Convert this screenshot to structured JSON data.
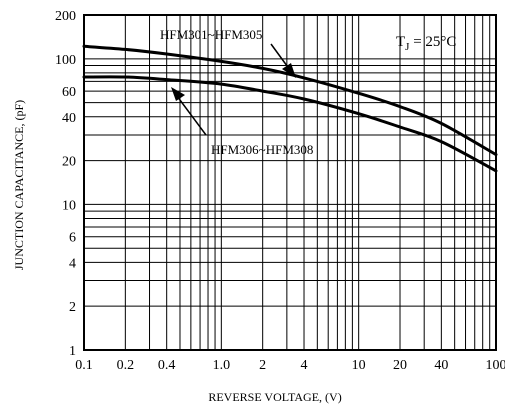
{
  "chart_data": {
    "type": "line",
    "title": "",
    "xlabel": "REVERSE VOLTAGE, (V)",
    "ylabel": "JUNCTION CAPACITANCE, (pF)",
    "x_scale": "log",
    "y_scale": "log",
    "xlim": [
      0.1,
      100
    ],
    "ylim": [
      1,
      200
    ],
    "grid": true,
    "x_ticks": [
      0.1,
      0.2,
      0.4,
      1,
      2,
      4,
      10,
      20,
      40,
      100
    ],
    "x_tick_labels": [
      "0.1",
      "0.2",
      "0.4",
      "1.0",
      "2",
      "4",
      "10",
      "20",
      "40",
      "100"
    ],
    "y_ticks": [
      1,
      2,
      4,
      6,
      10,
      20,
      40,
      60,
      100,
      200
    ],
    "y_tick_labels": [
      "1",
      "2",
      "4",
      "6",
      "10",
      "20",
      "40",
      "60",
      "100",
      "200"
    ],
    "annotation": "T_J = 25°C",
    "series": [
      {
        "name": "HFM301~HFM305",
        "x": [
          0.1,
          0.2,
          0.4,
          1,
          2,
          4,
          10,
          20,
          40,
          100
        ],
        "y": [
          122,
          116,
          108,
          96,
          86,
          74,
          58,
          47,
          36,
          22
        ]
      },
      {
        "name": "HFM306~HFM308",
        "x": [
          0.1,
          0.2,
          0.4,
          1,
          2,
          4,
          10,
          20,
          40,
          100
        ],
        "y": [
          75,
          75,
          72,
          67,
          60,
          53,
          42,
          34,
          27,
          17
        ]
      }
    ]
  },
  "labels": {
    "series1_label": "HFM301~HFM305",
    "series2_label": "HFM306~HFM308",
    "tj_main": "T",
    "tj_sub": "J",
    "tj_rest": " = 25°C"
  }
}
